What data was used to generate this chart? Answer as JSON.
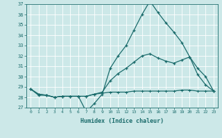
{
  "x": [
    0,
    1,
    2,
    3,
    4,
    5,
    6,
    7,
    8,
    9,
    10,
    11,
    12,
    13,
    14,
    15,
    16,
    17,
    18,
    19,
    20,
    21,
    22,
    23
  ],
  "line1": [
    28.8,
    28.2,
    28.2,
    28.0,
    28.1,
    28.1,
    28.1,
    26.6,
    27.4,
    28.3,
    30.8,
    32.0,
    33.0,
    34.5,
    36.0,
    37.3,
    36.2,
    35.2,
    34.3,
    33.3,
    31.9,
    30.2,
    29.2,
    28.6
  ],
  "line2": [
    28.8,
    28.3,
    28.2,
    28.0,
    28.1,
    28.1,
    28.1,
    28.1,
    28.3,
    28.5,
    29.6,
    30.3,
    30.8,
    31.4,
    32.0,
    32.2,
    31.8,
    31.5,
    31.3,
    31.6,
    31.9,
    30.8,
    30.0,
    28.6
  ],
  "line3": [
    28.8,
    28.3,
    28.2,
    28.0,
    28.1,
    28.1,
    28.1,
    28.1,
    28.3,
    28.4,
    28.5,
    28.5,
    28.5,
    28.6,
    28.6,
    28.6,
    28.6,
    28.6,
    28.6,
    28.7,
    28.7,
    28.6,
    28.6,
    28.6
  ],
  "line_color": "#1a6b6b",
  "bg_color": "#cce8e8",
  "grid_color": "#b8d8d8",
  "xlabel": "Humidex (Indice chaleur)",
  "ylim": [
    27,
    37
  ],
  "xlim_min": -0.5,
  "xlim_max": 23.5,
  "yticks": [
    27,
    28,
    29,
    30,
    31,
    32,
    33,
    34,
    35,
    36,
    37
  ],
  "xticks": [
    0,
    1,
    2,
    3,
    4,
    5,
    6,
    7,
    8,
    9,
    10,
    11,
    12,
    13,
    14,
    15,
    16,
    17,
    18,
    19,
    20,
    21,
    22,
    23
  ]
}
